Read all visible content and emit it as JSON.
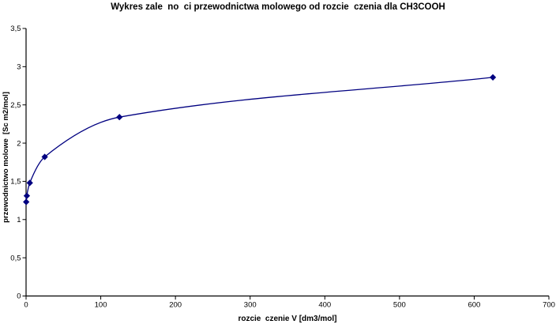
{
  "page": {
    "background": "#ffffff"
  },
  "chart_data": {
    "type": "line",
    "title": "Wykres zale  no  ci przewodnictwa molowego od rozcie  czenia dla CH3COOH",
    "xlabel": "rozcie  czenie V [dm3/mol]",
    "ylabel": "przewodnictwo molowe  [Sc m2/mol]",
    "x": [
      0.2,
      1,
      5,
      25,
      125,
      625
    ],
    "y": [
      1.23,
      1.31,
      1.48,
      1.82,
      2.34,
      2.86
    ],
    "xlim": [
      0,
      700
    ],
    "ylim": [
      0,
      3.5
    ],
    "x_ticks": [
      0,
      100,
      200,
      300,
      400,
      500,
      600,
      700
    ],
    "x_tick_labels": [
      "0",
      "100",
      "200",
      "300",
      "400",
      "500",
      "600",
      "700"
    ],
    "y_ticks": [
      0,
      0.5,
      1,
      1.5,
      2,
      2.5,
      3,
      3.5
    ],
    "y_tick_labels": [
      "0",
      "0,5",
      "1",
      "1,5",
      "2",
      "2,5",
      "3",
      "3,5"
    ],
    "grid": false,
    "legend": false,
    "smooth": true,
    "marker": "diamond",
    "line_color": "#000080",
    "marker_color": "#000080",
    "axis_color": "#000000",
    "text_color": "#000000"
  }
}
